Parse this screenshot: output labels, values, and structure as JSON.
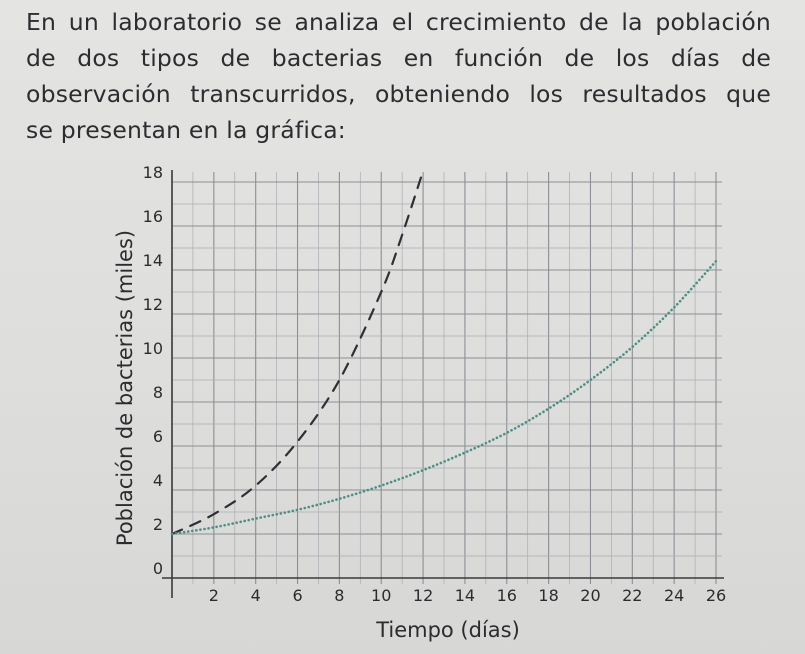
{
  "problem": {
    "lines": [
      "En un laboratorio se analiza el crecimiento de la población",
      "de dos tipos de bacterias en función de los días de",
      "observación transcurridos, obteniendo los resultados que",
      "se presentan en la gráfica:"
    ]
  },
  "chart_data": {
    "type": "line",
    "xlabel": "Tiempo (días)",
    "ylabel": "Población de bacterias (miles)",
    "xlim": [
      0,
      26
    ],
    "ylim": [
      0,
      18
    ],
    "x_ticks": [
      "2",
      "4",
      "6",
      "8",
      "10",
      "12",
      "14",
      "16",
      "18",
      "20",
      "22",
      "24",
      "26"
    ],
    "y_ticks": [
      "0",
      "2",
      "4",
      "6",
      "8",
      "10",
      "12",
      "14",
      "16",
      "18"
    ],
    "grid": true,
    "series": [
      {
        "style": "dashed",
        "color": "#2f2f35",
        "x": [
          0,
          2,
          4,
          6,
          8,
          10,
          11,
          12
        ],
        "y": [
          2,
          2.9,
          4.2,
          6.2,
          9.0,
          13.0,
          15.6,
          18.5
        ]
      },
      {
        "style": "dotted",
        "color": "#4c8f86",
        "x": [
          0,
          2,
          4,
          6,
          8,
          10,
          12,
          14,
          16,
          18,
          20,
          22,
          24,
          26
        ],
        "y": [
          2,
          2.3,
          2.7,
          3.1,
          3.6,
          4.2,
          4.9,
          5.7,
          6.6,
          7.7,
          9.0,
          10.5,
          12.3,
          14.4
        ]
      }
    ]
  }
}
